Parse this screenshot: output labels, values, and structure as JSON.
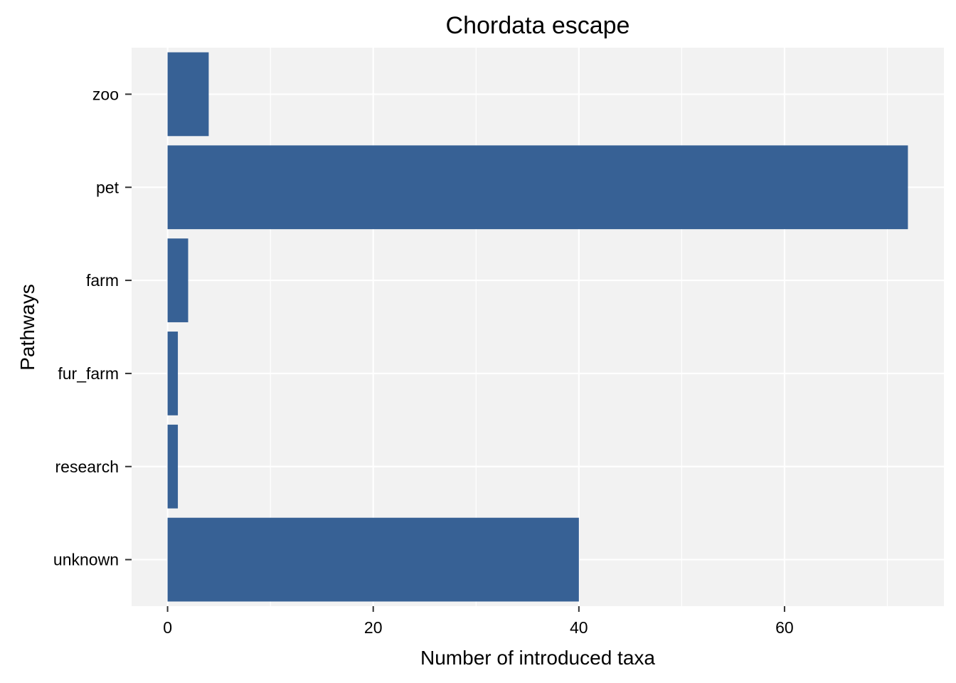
{
  "chart_data": {
    "type": "bar",
    "orientation": "horizontal",
    "title": "Chordata escape",
    "xlabel": "Number of introduced taxa",
    "ylabel": "Pathways",
    "categories": [
      "unknown",
      "research",
      "fur_farm",
      "farm",
      "pet",
      "zoo"
    ],
    "values": [
      40,
      1,
      1,
      2,
      72,
      4
    ],
    "xlim": [
      -3.5,
      75.5
    ],
    "xticks": [
      0,
      20,
      40,
      60
    ],
    "grid": true,
    "legend": "none",
    "colors": {
      "bar": "#376195",
      "panel": "#f2f2f2",
      "grid": "#ffffff"
    }
  }
}
